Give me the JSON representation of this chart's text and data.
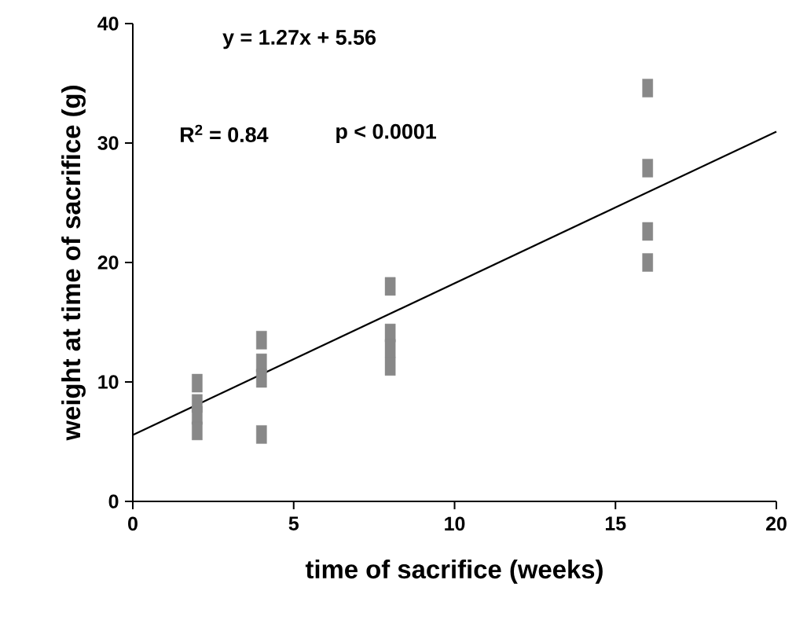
{
  "chart_data": {
    "type": "scatter",
    "xlabel": "time of sacrifice (weeks)",
    "ylabel": "weight at time of sacrifice (g)",
    "xlim": [
      0,
      20
    ],
    "ylim": [
      0,
      40
    ],
    "xticks": [
      0,
      5,
      10,
      15,
      20
    ],
    "yticks": [
      0,
      10,
      20,
      30,
      40
    ],
    "marker": "square",
    "annotations": [
      "y = 1.27x + 5.56",
      "R$^{2}$ = 0.84",
      "p < 0.0001"
    ],
    "series": [
      {
        "color": "#888888",
        "x": [
          2,
          2,
          2,
          2,
          4,
          4,
          4,
          4,
          8,
          8,
          8,
          8,
          16,
          16,
          16,
          16
        ],
        "values": [
          9.9,
          8.2,
          7.2,
          5.9,
          13.5,
          11.6,
          10.3,
          5.6,
          18.0,
          14.1,
          12.8,
          11.3,
          34.6,
          27.9,
          22.6,
          20.0
        ]
      },
      {
        "type": "line",
        "color": "#000000",
        "marker": "none",
        "line_style": "solid",
        "x": [
          0,
          20
        ],
        "values": [
          5.56,
          30.96
        ]
      }
    ]
  }
}
